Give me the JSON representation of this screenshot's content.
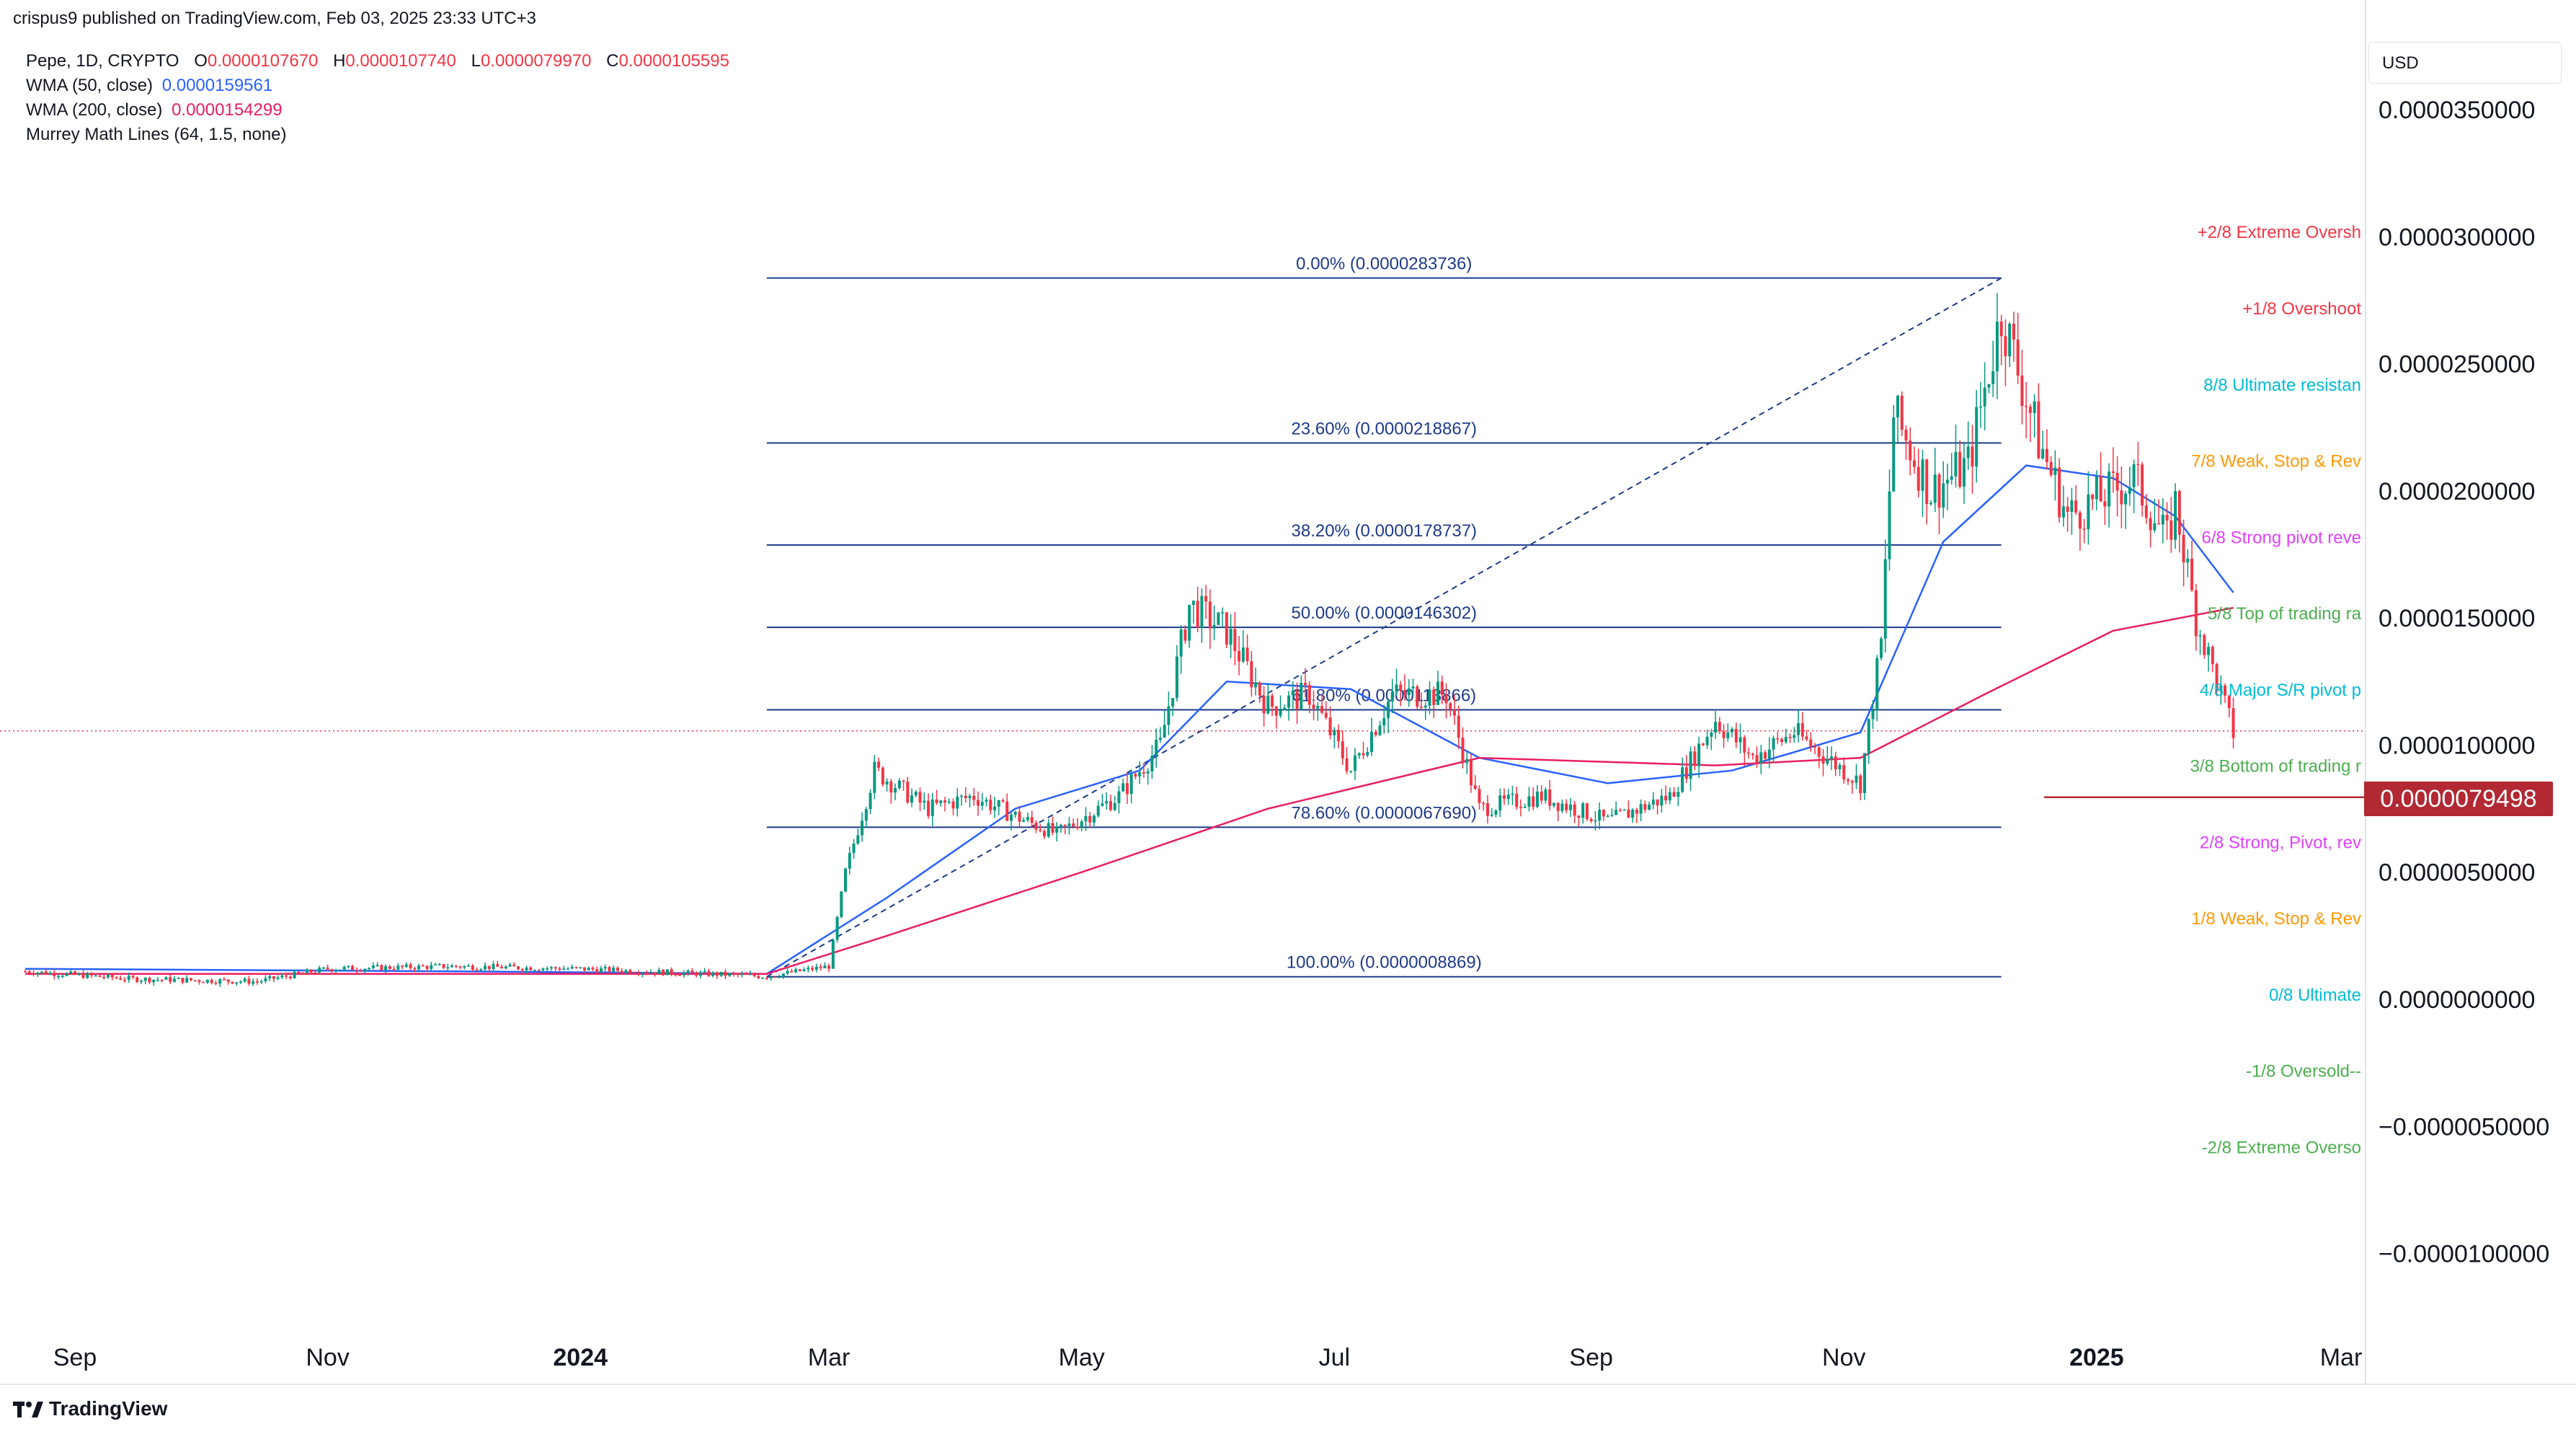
{
  "header": {
    "published": "crispus9 published on TradingView.com, Feb 03, 2025 23:33 UTC+3"
  },
  "legend": {
    "symbol": "Pepe, 1D, CRYPTO",
    "open_label": "O",
    "open": "0.0000107670",
    "high_label": "H",
    "high": "0.0000107740",
    "low_label": "L",
    "low": "0.0000079970",
    "close_label": "C",
    "close": "0.0000105595",
    "wma50_label": "WMA (50, close)",
    "wma50_value": "0.0000159561",
    "wma200_label": "WMA (200, close)",
    "wma200_value": "0.0000154299",
    "murrey_label": "Murrey Math Lines (64, 1.5, none)"
  },
  "currency": "USD",
  "price_tag": "0.0000079498",
  "footer": {
    "brand": "TradingView"
  },
  "colors": {
    "up": "#089981",
    "down": "#f23645",
    "wma50": "#2962ff",
    "wma200": "#e91e63",
    "fib": "#1e3a8a",
    "price_tag": "#b22833"
  },
  "chart_data": {
    "type": "candlestick",
    "x_ticks": [
      {
        "label": "Sep",
        "date": "2023-09-01",
        "bold": false
      },
      {
        "label": "Nov",
        "date": "2023-11-01",
        "bold": false
      },
      {
        "label": "2024",
        "date": "2024-01-01",
        "bold": true
      },
      {
        "label": "Mar",
        "date": "2024-03-01",
        "bold": false
      },
      {
        "label": "May",
        "date": "2024-05-01",
        "bold": false
      },
      {
        "label": "Jul",
        "date": "2024-07-01",
        "bold": false
      },
      {
        "label": "Sep",
        "date": "2024-09-01",
        "bold": false
      },
      {
        "label": "Nov",
        "date": "2024-11-01",
        "bold": false
      },
      {
        "label": "2025",
        "date": "2025-01-01",
        "bold": true
      },
      {
        "label": "Mar",
        "date": "2025-03-01",
        "bold": false
      }
    ],
    "y_ticks": [
      {
        "label": "0.0000350000",
        "value": 3.5e-05
      },
      {
        "label": "0.0000300000",
        "value": 3e-05
      },
      {
        "label": "0.0000250000",
        "value": 2.5e-05
      },
      {
        "label": "0.0000200000",
        "value": 2e-05
      },
      {
        "label": "0.0000150000",
        "value": 1.5e-05
      },
      {
        "label": "0.0000100000",
        "value": 1e-05
      },
      {
        "label": "0.0000050000",
        "value": 5e-06
      },
      {
        "label": "0.0000000000",
        "value": 0
      },
      {
        "label": "−0.0000050000",
        "value": -5e-06
      },
      {
        "label": "−0.0000100000",
        "value": -1e-05
      }
    ],
    "price_line": 7.9498e-06,
    "current_close": 1.05595e-05,
    "fibonacci": {
      "start": {
        "date": "2024-02-15",
        "value": 8.869e-07
      },
      "end": {
        "date": "2024-12-09",
        "value": 2.83736e-05
      },
      "levels": [
        {
          "label": "0.00% (0.0000283736)",
          "value": 2.83736e-05
        },
        {
          "label": "23.60% (0.0000218867)",
          "value": 2.18867e-05
        },
        {
          "label": "38.20% (0.0000178737)",
          "value": 1.78737e-05
        },
        {
          "label": "50.00% (0.0000146302)",
          "value": 1.46302e-05
        },
        {
          "label": "61.80% (0.0000113866)",
          "value": 1.13866e-05
        },
        {
          "label": "78.60% (0.0000067690)",
          "value": 6.769e-06
        },
        {
          "label": "100.00% (0.0000008869)",
          "value": 8.869e-07
        }
      ]
    },
    "murrey_labels": [
      {
        "text": "+2/8 Extreme Oversh",
        "value": 3.02e-05,
        "color": "#f23645"
      },
      {
        "text": "+1/8 Overshoot",
        "value": 2.72e-05,
        "color": "#f23645"
      },
      {
        "text": "8/8 Ultimate resistan",
        "value": 2.42e-05,
        "color": "#00bcd4"
      },
      {
        "text": "7/8 Weak, Stop & Rev",
        "value": 2.12e-05,
        "color": "#ff9800"
      },
      {
        "text": "6/8 Strong pivot reve",
        "value": 1.82e-05,
        "color": "#e040fb"
      },
      {
        "text": "5/8 Top of trading ra",
        "value": 1.52e-05,
        "color": "#4caf50"
      },
      {
        "text": "4/8 Major S/R pivot p",
        "value": 1.22e-05,
        "color": "#00bcd4"
      },
      {
        "text": "3/8 Bottom of trading r",
        "value": 9.2e-06,
        "color": "#4caf50"
      },
      {
        "text": "2/8 Strong, Pivot, rev",
        "value": 6.2e-06,
        "color": "#e040fb"
      },
      {
        "text": "1/8 Weak, Stop & Rev",
        "value": 3.2e-06,
        "color": "#ff9800"
      },
      {
        "text": "0/8 Ultimate",
        "value": 2e-07,
        "color": "#00bcd4"
      },
      {
        "text": "-1/8 Oversold--",
        "value": -2.8e-06,
        "color": "#4caf50"
      },
      {
        "text": "-2/8 Extreme Overso",
        "value": -5.8e-06,
        "color": "#4caf50"
      }
    ],
    "price_path_monthly": [
      [
        "2023-08-20",
        1.1e-06
      ],
      [
        "2023-09-15",
        8e-07
      ],
      [
        "2023-10-15",
        7e-07
      ],
      [
        "2023-11-01",
        1.2e-06
      ],
      [
        "2023-12-01",
        1.3e-06
      ],
      [
        "2024-01-01",
        1.2e-06
      ],
      [
        "2024-02-15",
        9e-07
      ],
      [
        "2024-03-01",
        1.3e-06
      ],
      [
        "2024-03-05",
        5e-06
      ],
      [
        "2024-03-12",
        9e-06
      ],
      [
        "2024-03-25",
        7.5e-06
      ],
      [
        "2024-04-05",
        8e-06
      ],
      [
        "2024-04-15",
        7.2e-06
      ],
      [
        "2024-04-25",
        6.5e-06
      ],
      [
        "2024-05-10",
        8e-06
      ],
      [
        "2024-05-20",
        1e-05
      ],
      [
        "2024-05-27",
        1.55e-05
      ],
      [
        "2024-06-05",
        1.45e-05
      ],
      [
        "2024-06-15",
        1.15e-05
      ],
      [
        "2024-06-25",
        1.2e-05
      ],
      [
        "2024-07-05",
        9e-06
      ],
      [
        "2024-07-15",
        1.2e-05
      ],
      [
        "2024-07-28",
        1.2e-05
      ],
      [
        "2024-08-05",
        7.5e-06
      ],
      [
        "2024-08-20",
        8e-06
      ],
      [
        "2024-09-05",
        7e-06
      ],
      [
        "2024-09-20",
        8e-06
      ],
      [
        "2024-10-01",
        1.1e-05
      ],
      [
        "2024-10-10",
        9.5e-06
      ],
      [
        "2024-10-20",
        1.05e-05
      ],
      [
        "2024-11-05",
        8.5e-06
      ],
      [
        "2024-11-10",
        1.4e-05
      ],
      [
        "2024-11-13",
        2.3e-05
      ],
      [
        "2024-11-22",
        2e-05
      ],
      [
        "2024-12-01",
        2.1e-05
      ],
      [
        "2024-12-09",
        2.7e-05
      ],
      [
        "2024-12-18",
        2.2e-05
      ],
      [
        "2024-12-25",
        1.9e-05
      ],
      [
        "2025-01-05",
        2e-05
      ],
      [
        "2025-01-10",
        2.05e-05
      ],
      [
        "2025-01-18",
        1.8e-05
      ],
      [
        "2025-01-20",
        1.95e-05
      ],
      [
        "2025-01-25",
        1.5e-05
      ],
      [
        "2025-01-31",
        1.2e-05
      ],
      [
        "2025-02-03",
        1.05e-05
      ]
    ],
    "wma50_path": [
      [
        "2023-08-20",
        1.2e-06
      ],
      [
        "2023-12-01",
        1.1e-06
      ],
      [
        "2024-02-15",
        1e-06
      ],
      [
        "2024-03-15",
        4e-06
      ],
      [
        "2024-04-15",
        7.5e-06
      ],
      [
        "2024-05-15",
        9e-06
      ],
      [
        "2024-06-05",
        1.25e-05
      ],
      [
        "2024-07-05",
        1.22e-05
      ],
      [
        "2024-08-05",
        9.5e-06
      ],
      [
        "2024-09-05",
        8.5e-06
      ],
      [
        "2024-10-05",
        9e-06
      ],
      [
        "2024-11-05",
        1.05e-05
      ],
      [
        "2024-11-25",
        1.8e-05
      ],
      [
        "2024-12-15",
        2.1e-05
      ],
      [
        "2025-01-05",
        2.05e-05
      ],
      [
        "2025-01-20",
        1.9e-05
      ],
      [
        "2025-02-03",
        1.6e-05
      ]
    ],
    "wma200_path": [
      [
        "2023-08-20",
        1e-06
      ],
      [
        "2024-02-15",
        1e-06
      ],
      [
        "2024-03-15",
        2.5e-06
      ],
      [
        "2024-05-01",
        5e-06
      ],
      [
        "2024-06-15",
        7.5e-06
      ],
      [
        "2024-08-05",
        9.5e-06
      ],
      [
        "2024-10-01",
        9.2e-06
      ],
      [
        "2024-11-05",
        9.5e-06
      ],
      [
        "2024-12-05",
        1.2e-05
      ],
      [
        "2025-01-05",
        1.45e-05
      ],
      [
        "2025-02-03",
        1.54e-05
      ]
    ]
  }
}
